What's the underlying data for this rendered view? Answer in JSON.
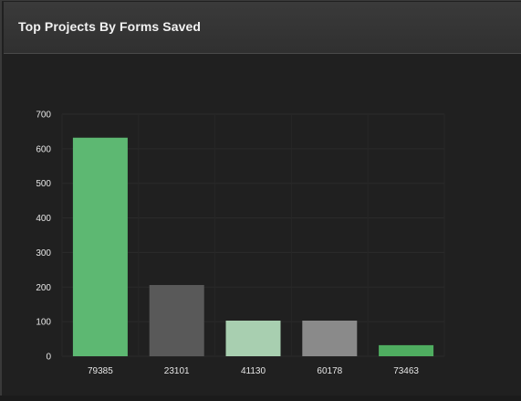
{
  "header": {
    "title": "Top Projects By Forms Saved"
  },
  "chart_data": {
    "type": "bar",
    "title": "Top Projects By Forms Saved",
    "xlabel": "",
    "ylabel": "",
    "categories": [
      "79385",
      "23101",
      "41130",
      "60178",
      "73463"
    ],
    "values": [
      632,
      206,
      103,
      103,
      32
    ],
    "ylim": [
      0,
      700
    ],
    "yticks": [
      0,
      100,
      200,
      300,
      400,
      500,
      600,
      700
    ],
    "grid": true,
    "legend": "none",
    "colors": [
      "#5db872",
      "#595959",
      "#a8cfb0",
      "#8a8a8a",
      "#4fad60"
    ]
  }
}
